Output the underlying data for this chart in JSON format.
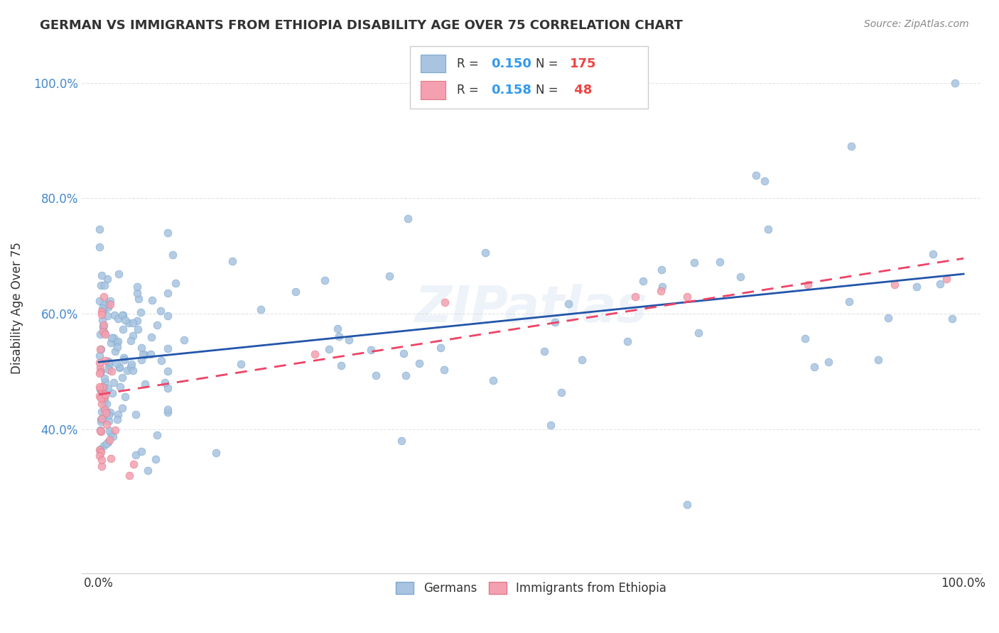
{
  "title": "GERMAN VS IMMIGRANTS FROM ETHIOPIA DISABILITY AGE OVER 75 CORRELATION CHART",
  "source": "Source: ZipAtlas.com",
  "ylabel": "Disability Age Over 75",
  "watermark": "ZIPatlas",
  "german_R": 0.15,
  "german_N": 175,
  "ethiopia_R": 0.158,
  "ethiopia_N": 48,
  "german_color": "#a8c4e0",
  "ethiopia_color": "#f4a0b0",
  "german_line_color": "#2255aa",
  "ethiopia_line_color": "#ee4466",
  "background_color": "#ffffff",
  "grid_color": "#dddddd"
}
